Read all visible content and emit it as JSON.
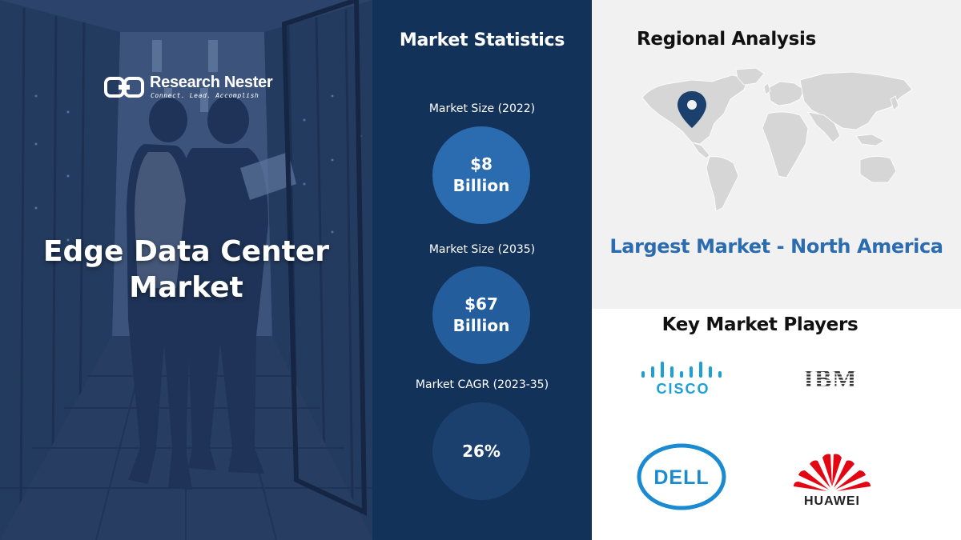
{
  "hero": {
    "brand_name": "Research Nester",
    "brand_tagline": "Connect. Lead. Accomplish",
    "title_line1": "Edge Data Center",
    "title_line2": "Market"
  },
  "stats": {
    "title": "Market Statistics",
    "items": [
      {
        "label": "Market Size (2022)",
        "value_line1": "$8",
        "value_line2": "Billion",
        "color": "#2b6cb0"
      },
      {
        "label": "Market Size (2035)",
        "value_line1": "$67",
        "value_line2": "Billion",
        "color": "#245d9c"
      },
      {
        "label": "Market CAGR (2023-35)",
        "value_line1": "26%",
        "value_line2": "",
        "color": "#1b406d"
      }
    ]
  },
  "regional": {
    "title": "Regional Analysis",
    "largest_market": "Largest Market - North America",
    "pin_icon": "map-pin-icon"
  },
  "players": {
    "title": "Key Market Players",
    "logos": {
      "cisco": "CISCO",
      "ibm": "IBM",
      "dell": "DELL",
      "huawei": "HUAWEI"
    }
  },
  "colors": {
    "navy": "#133259",
    "accent_blue": "#2b6cb0",
    "panel_grey": "#f1f1f1",
    "cisco_blue": "#1ba0d7",
    "dell_blue": "#1a8bd1",
    "huawei_red": "#e30613"
  }
}
